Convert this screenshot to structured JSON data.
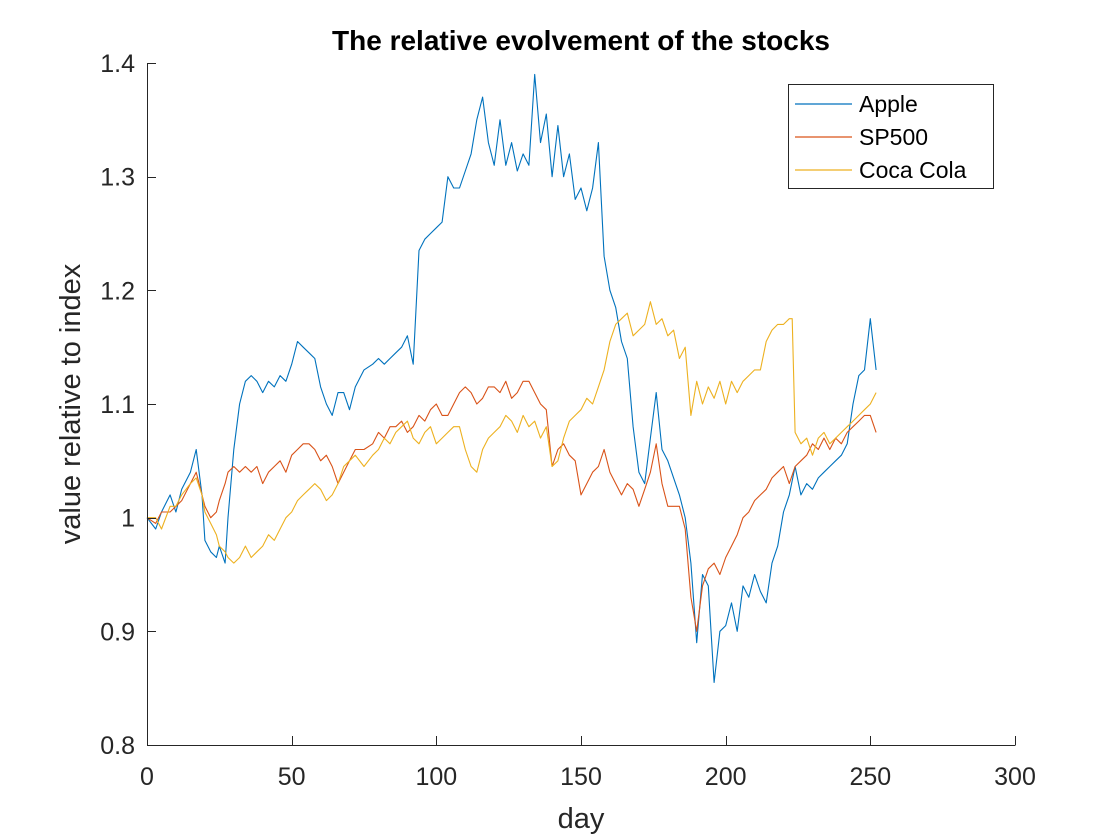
{
  "chart_data": {
    "type": "line",
    "title": "The relative evolvement of the stocks",
    "xlabel": "day",
    "ylabel": "value relative to index",
    "xlim": [
      0,
      300
    ],
    "ylim": [
      0.8,
      1.4
    ],
    "xticks": [
      0,
      50,
      100,
      150,
      200,
      250,
      300
    ],
    "xtick_labels": [
      "0",
      "50",
      "100",
      "150",
      "200",
      "250",
      "300"
    ],
    "yticks": [
      0.8,
      0.9,
      1.0,
      1.1,
      1.2,
      1.3,
      1.4
    ],
    "ytick_labels": [
      "0.8",
      "0.9",
      "1",
      "1.1",
      "1.2",
      "1.3",
      "1.4"
    ],
    "grid": false,
    "legend_position": "top-right",
    "series": [
      {
        "name": "Apple",
        "color": "#0072BD",
        "x": [
          0,
          3,
          5,
          8,
          10,
          12,
          15,
          17,
          19,
          20,
          22,
          24,
          25,
          27,
          28,
          30,
          32,
          34,
          36,
          38,
          40,
          42,
          44,
          46,
          48,
          50,
          52,
          54,
          56,
          58,
          60,
          62,
          64,
          66,
          68,
          70,
          72,
          75,
          78,
          80,
          82,
          84,
          86,
          88,
          90,
          92,
          94,
          96,
          98,
          100,
          102,
          104,
          106,
          108,
          110,
          112,
          114,
          116,
          118,
          120,
          122,
          124,
          126,
          128,
          130,
          132,
          134,
          136,
          138,
          140,
          142,
          144,
          146,
          148,
          150,
          152,
          154,
          156,
          158,
          160,
          162,
          164,
          166,
          168,
          170,
          172,
          174,
          176,
          178,
          180,
          182,
          184,
          186,
          188,
          190,
          192,
          194,
          196,
          198,
          200,
          202,
          204,
          206,
          208,
          210,
          212,
          214,
          216,
          218,
          220,
          222,
          224,
          226,
          228,
          230,
          232,
          234,
          236,
          238,
          240,
          242,
          244,
          246,
          248,
          250,
          252
        ],
        "values": [
          1.0,
          0.99,
          1.005,
          1.02,
          1.005,
          1.025,
          1.04,
          1.06,
          1.02,
          0.98,
          0.97,
          0.965,
          0.975,
          0.96,
          1.0,
          1.06,
          1.1,
          1.12,
          1.125,
          1.12,
          1.11,
          1.12,
          1.115,
          1.125,
          1.12,
          1.135,
          1.155,
          1.15,
          1.145,
          1.14,
          1.115,
          1.1,
          1.09,
          1.11,
          1.11,
          1.095,
          1.115,
          1.13,
          1.135,
          1.14,
          1.135,
          1.14,
          1.145,
          1.15,
          1.16,
          1.135,
          1.235,
          1.245,
          1.25,
          1.255,
          1.26,
          1.3,
          1.29,
          1.29,
          1.305,
          1.32,
          1.35,
          1.37,
          1.33,
          1.31,
          1.35,
          1.31,
          1.33,
          1.305,
          1.32,
          1.31,
          1.39,
          1.33,
          1.355,
          1.3,
          1.345,
          1.3,
          1.32,
          1.28,
          1.29,
          1.27,
          1.29,
          1.33,
          1.23,
          1.2,
          1.185,
          1.155,
          1.14,
          1.08,
          1.04,
          1.03,
          1.07,
          1.11,
          1.06,
          1.05,
          1.035,
          1.02,
          1.0,
          0.96,
          0.89,
          0.95,
          0.94,
          0.855,
          0.9,
          0.905,
          0.925,
          0.9,
          0.94,
          0.93,
          0.95,
          0.935,
          0.925,
          0.96,
          0.975,
          1.005,
          1.02,
          1.045,
          1.02,
          1.03,
          1.025,
          1.035,
          1.04,
          1.045,
          1.05,
          1.055,
          1.065,
          1.1,
          1.125,
          1.13,
          1.175,
          1.13
        ]
      },
      {
        "name": "SP500",
        "color": "#D95319",
        "x": [
          0,
          3,
          5,
          8,
          10,
          12,
          15,
          17,
          19,
          20,
          22,
          24,
          25,
          27,
          28,
          30,
          32,
          34,
          36,
          38,
          40,
          42,
          44,
          46,
          48,
          50,
          52,
          54,
          56,
          58,
          60,
          62,
          64,
          66,
          68,
          70,
          72,
          75,
          78,
          80,
          82,
          84,
          86,
          88,
          90,
          92,
          94,
          96,
          98,
          100,
          102,
          104,
          106,
          108,
          110,
          112,
          114,
          116,
          118,
          120,
          122,
          124,
          126,
          128,
          130,
          132,
          134,
          136,
          138,
          140,
          142,
          144,
          146,
          148,
          150,
          152,
          154,
          156,
          158,
          160,
          162,
          164,
          166,
          168,
          170,
          172,
          174,
          176,
          178,
          180,
          182,
          184,
          186,
          188,
          190,
          192,
          194,
          196,
          198,
          200,
          202,
          204,
          206,
          208,
          210,
          212,
          214,
          216,
          218,
          220,
          222,
          224,
          226,
          228,
          230,
          232,
          234,
          236,
          238,
          240,
          242,
          244,
          246,
          248,
          250,
          252
        ],
        "values": [
          1.0,
          0.995,
          1.005,
          1.005,
          1.01,
          1.015,
          1.03,
          1.04,
          1.02,
          1.01,
          1.0,
          1.005,
          1.015,
          1.03,
          1.04,
          1.045,
          1.04,
          1.045,
          1.04,
          1.045,
          1.03,
          1.04,
          1.045,
          1.05,
          1.04,
          1.055,
          1.06,
          1.065,
          1.065,
          1.06,
          1.05,
          1.055,
          1.045,
          1.03,
          1.04,
          1.05,
          1.06,
          1.06,
          1.065,
          1.075,
          1.07,
          1.08,
          1.08,
          1.085,
          1.075,
          1.08,
          1.09,
          1.085,
          1.095,
          1.1,
          1.09,
          1.09,
          1.1,
          1.11,
          1.115,
          1.11,
          1.1,
          1.105,
          1.115,
          1.115,
          1.11,
          1.12,
          1.105,
          1.11,
          1.12,
          1.12,
          1.11,
          1.1,
          1.095,
          1.045,
          1.06,
          1.065,
          1.055,
          1.05,
          1.02,
          1.03,
          1.04,
          1.045,
          1.06,
          1.04,
          1.03,
          1.02,
          1.03,
          1.025,
          1.01,
          1.025,
          1.04,
          1.065,
          1.03,
          1.01,
          1.01,
          1.01,
          0.99,
          0.93,
          0.9,
          0.94,
          0.955,
          0.96,
          0.95,
          0.965,
          0.975,
          0.985,
          1.0,
          1.005,
          1.015,
          1.02,
          1.025,
          1.035,
          1.04,
          1.045,
          1.03,
          1.045,
          1.05,
          1.055,
          1.065,
          1.06,
          1.07,
          1.06,
          1.07,
          1.065,
          1.075,
          1.08,
          1.085,
          1.09,
          1.09,
          1.075
        ]
      },
      {
        "name": "Coca Cola",
        "color": "#EDB120",
        "x": [
          0,
          3,
          5,
          8,
          10,
          12,
          15,
          17,
          19,
          20,
          22,
          24,
          25,
          27,
          28,
          30,
          32,
          34,
          36,
          38,
          40,
          42,
          44,
          46,
          48,
          50,
          52,
          54,
          56,
          58,
          60,
          62,
          64,
          66,
          68,
          70,
          72,
          75,
          78,
          80,
          82,
          84,
          86,
          88,
          90,
          92,
          94,
          96,
          98,
          100,
          102,
          104,
          106,
          108,
          110,
          112,
          114,
          116,
          118,
          120,
          122,
          124,
          126,
          128,
          130,
          132,
          134,
          136,
          138,
          140,
          142,
          144,
          146,
          148,
          150,
          152,
          154,
          156,
          158,
          160,
          162,
          164,
          166,
          168,
          170,
          172,
          174,
          176,
          178,
          180,
          182,
          184,
          186,
          188,
          190,
          192,
          194,
          196,
          198,
          200,
          202,
          204,
          206,
          208,
          210,
          212,
          214,
          216,
          218,
          220,
          222,
          223,
          224,
          226,
          228,
          230,
          232,
          234,
          236,
          238,
          240,
          242,
          244,
          246,
          248,
          250,
          252
        ],
        "values": [
          1.0,
          1.0,
          0.99,
          1.01,
          1.01,
          1.02,
          1.03,
          1.035,
          1.02,
          1.005,
          0.995,
          0.985,
          0.975,
          0.97,
          0.965,
          0.96,
          0.965,
          0.975,
          0.965,
          0.97,
          0.975,
          0.985,
          0.98,
          0.99,
          1.0,
          1.005,
          1.015,
          1.02,
          1.025,
          1.03,
          1.025,
          1.015,
          1.02,
          1.03,
          1.045,
          1.05,
          1.055,
          1.045,
          1.055,
          1.06,
          1.07,
          1.065,
          1.075,
          1.08,
          1.085,
          1.07,
          1.065,
          1.075,
          1.08,
          1.065,
          1.07,
          1.075,
          1.08,
          1.08,
          1.06,
          1.045,
          1.04,
          1.06,
          1.07,
          1.075,
          1.08,
          1.09,
          1.085,
          1.075,
          1.09,
          1.08,
          1.085,
          1.07,
          1.08,
          1.045,
          1.05,
          1.07,
          1.085,
          1.09,
          1.095,
          1.105,
          1.1,
          1.115,
          1.13,
          1.155,
          1.17,
          1.175,
          1.18,
          1.16,
          1.165,
          1.17,
          1.19,
          1.17,
          1.175,
          1.16,
          1.165,
          1.14,
          1.15,
          1.09,
          1.12,
          1.1,
          1.115,
          1.105,
          1.12,
          1.1,
          1.12,
          1.11,
          1.12,
          1.125,
          1.13,
          1.13,
          1.155,
          1.165,
          1.17,
          1.17,
          1.175,
          1.175,
          1.075,
          1.065,
          1.07,
          1.055,
          1.07,
          1.075,
          1.065,
          1.07,
          1.075,
          1.08,
          1.085,
          1.09,
          1.095,
          1.1,
          1.11
        ]
      }
    ]
  }
}
